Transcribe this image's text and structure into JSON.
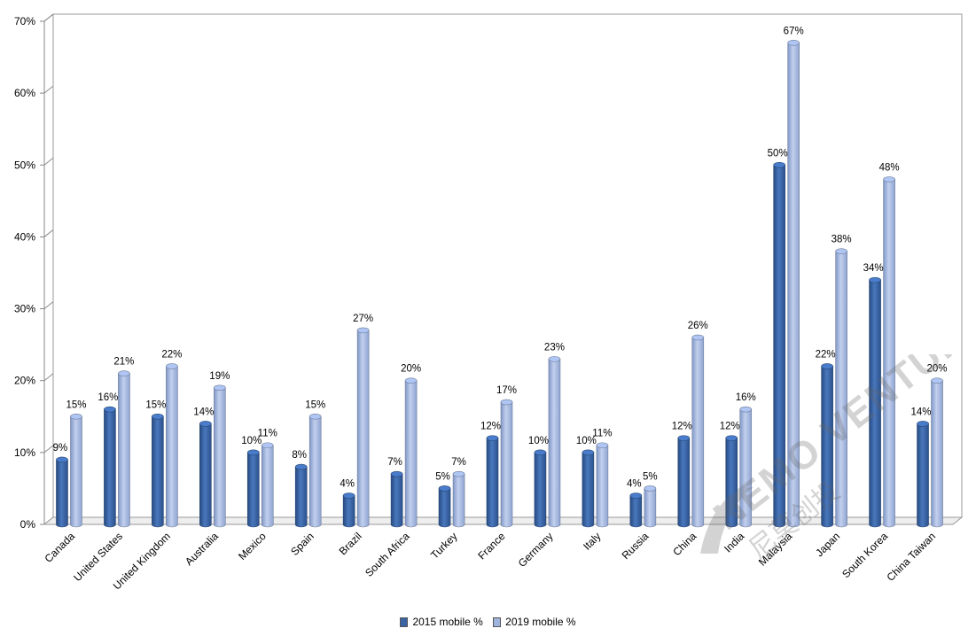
{
  "chart_data": {
    "type": "bar",
    "categories": [
      "Canada",
      "United States",
      "United Kingdom",
      "Australia",
      "Mexico",
      "Spain",
      "Brazil",
      "South Africa",
      "Turkey",
      "France",
      "Germany",
      "Italy",
      "Russia",
      "China",
      "India",
      "Malaysia",
      "Japan",
      "South Korea",
      "China Taiwan"
    ],
    "series": [
      {
        "name": "2015 mobile %",
        "values": [
          9,
          16,
          15,
          14,
          10,
          8,
          4,
          7,
          5,
          12,
          10,
          10,
          4,
          12,
          12,
          50,
          22,
          34,
          14
        ],
        "labels": [
          "9%",
          "16%",
          "15%",
          "14%",
          "10%",
          "8%",
          "4%",
          "7%",
          "5%",
          "12%",
          "10%",
          "10%",
          "4%",
          "12%",
          "12%",
          "50%",
          "22%",
          "34%",
          "14%"
        ],
        "color": "#3a64a3"
      },
      {
        "name": "2019 mobile %",
        "values": [
          15,
          21,
          22,
          19,
          11,
          15,
          27,
          20,
          7,
          17,
          23,
          11,
          5,
          26,
          16,
          67,
          38,
          48,
          20
        ],
        "labels": [
          "15%",
          "21%",
          "22%",
          "19%",
          "11%",
          "15%",
          "27%",
          "20%",
          "7%",
          "17%",
          "23%",
          "11%",
          "5%",
          "26%",
          "16%",
          "67%",
          "38%",
          "48%",
          "20%"
        ],
        "color": "#9fb3dd"
      }
    ],
    "ylim": [
      0,
      70
    ],
    "yticks": [
      "0%",
      "10%",
      "20%",
      "30%",
      "40%",
      "50%",
      "60%",
      "70%"
    ],
    "ytick_values": [
      0,
      10,
      20,
      30,
      40,
      50,
      60,
      70
    ],
    "grid": true,
    "legend_position": "bottom",
    "title": "",
    "xlabel": "",
    "ylabel": ""
  },
  "watermark": {
    "text": "NEMO VENTURES",
    "subtext": "尼莫创投"
  }
}
